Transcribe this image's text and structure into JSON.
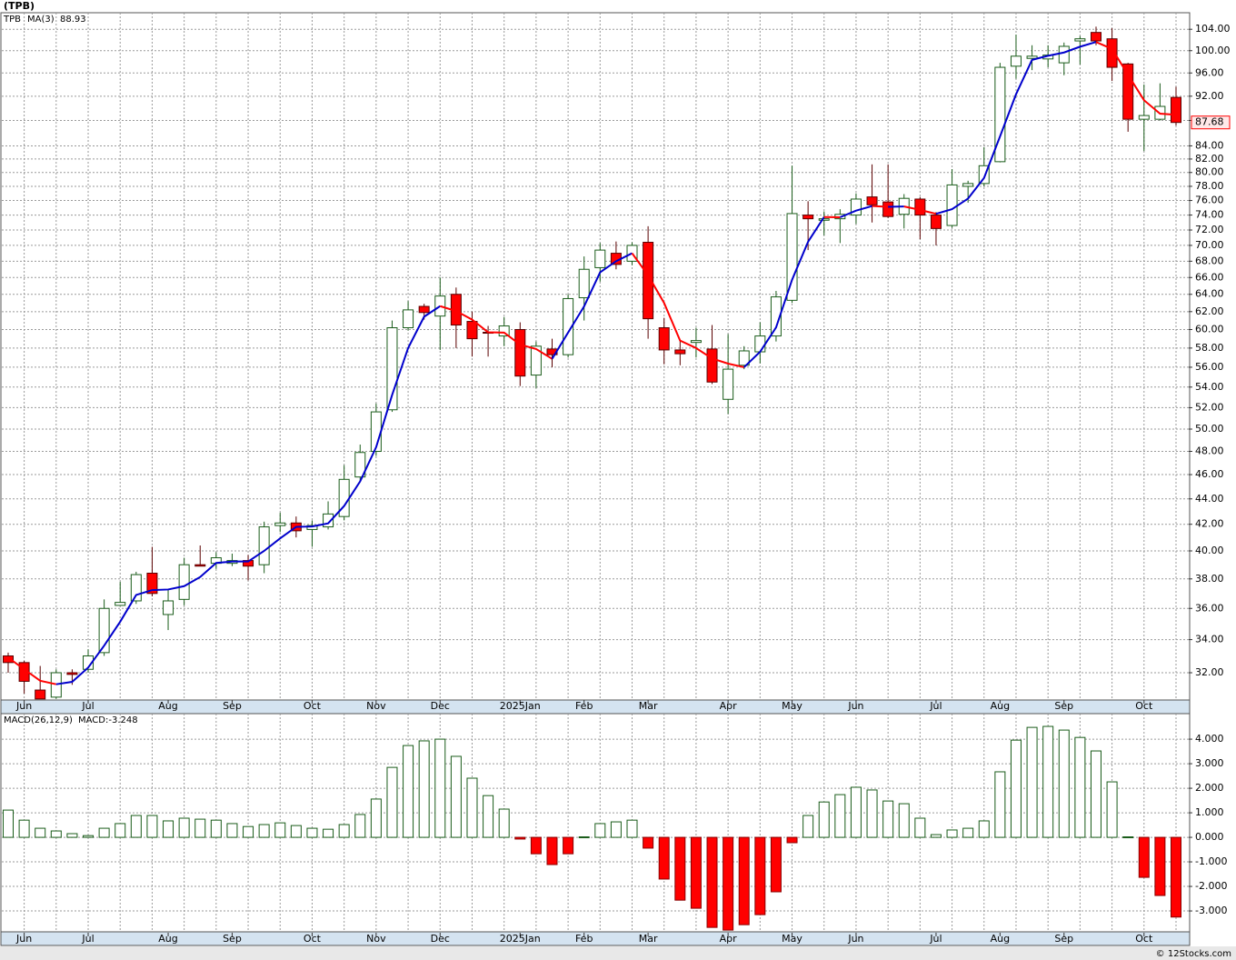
{
  "chart_data": [
    {
      "type": "candlestick",
      "title": "(TPB)",
      "symbol": "TPB",
      "symbol_color": "#1a6b1a",
      "ma_value": 88.93,
      "last_price": 87.68,
      "log_scale": true,
      "grid": true,
      "up_color": "#ffffff",
      "up_edge": "#1a5c1a",
      "down_color": "#ff0000",
      "down_edge": "#5a0000",
      "categories": [
        null,
        "Jun",
        null,
        null,
        null,
        "Jul",
        null,
        null,
        null,
        null,
        "Aug",
        null,
        null,
        null,
        "Sep",
        null,
        null,
        null,
        null,
        "Oct",
        null,
        null,
        null,
        "Nov",
        null,
        null,
        null,
        "Dec",
        null,
        null,
        null,
        null,
        "2025Jan",
        null,
        null,
        null,
        "Feb",
        null,
        null,
        null,
        "Mar",
        null,
        null,
        null,
        null,
        "Apr",
        null,
        null,
        null,
        "May",
        null,
        null,
        null,
        "Jun",
        null,
        null,
        null,
        null,
        "Jul",
        null,
        null,
        null,
        "Aug",
        null,
        null,
        null,
        "Sep",
        null,
        null,
        null,
        null,
        "Oct",
        null,
        null
      ],
      "open": [
        33.0,
        32.6,
        31.0,
        30.6,
        32.0,
        32.2,
        33.2,
        36.2,
        36.5,
        38.4,
        35.6,
        36.6,
        39.0,
        39.1,
        39.1,
        39.3,
        39.0,
        41.9,
        42.1,
        41.6,
        41.8,
        42.6,
        45.8,
        48.0,
        51.8,
        60.2,
        62.6,
        61.5,
        64.0,
        60.9,
        59.7,
        59.3,
        60.0,
        55.2,
        57.9,
        57.3,
        63.6,
        67.2,
        69.0,
        68.0,
        70.4,
        60.2,
        57.8,
        58.6,
        57.9,
        52.8,
        56.2,
        57.6,
        59.3,
        63.3,
        74.0,
        73.3,
        73.5,
        74.0,
        76.5,
        75.8,
        74.1,
        76.2,
        74.0,
        72.6,
        78.0,
        78.4,
        81.6,
        97.2,
        98.6,
        98.5,
        97.8,
        101.8,
        103.4,
        102.2,
        97.6,
        88.2,
        88.2,
        91.8
      ],
      "high": [
        33.2,
        32.7,
        32.4,
        32.2,
        32.2,
        33.4,
        36.6,
        37.8,
        38.5,
        40.3,
        37.3,
        39.5,
        40.4,
        39.9,
        39.8,
        39.7,
        42.2,
        42.9,
        42.6,
        42.3,
        43.8,
        46.8,
        48.6,
        52.4,
        61.0,
        63.2,
        62.9,
        66.0,
        64.8,
        62.0,
        60.4,
        61.4,
        60.8,
        58.7,
        59.0,
        64.0,
        68.6,
        70.3,
        70.5,
        70.4,
        72.5,
        61.3,
        58.8,
        60.2,
        60.5,
        59.5,
        58.2,
        60.8,
        64.4,
        81.0,
        75.9,
        74.5,
        74.8,
        77.0,
        81.2,
        81.2,
        76.9,
        76.5,
        74.4,
        80.5,
        78.8,
        83.8,
        97.8,
        103.0,
        101.0,
        101.0,
        101.5,
        102.7,
        104.5,
        104.2,
        97.8,
        94.0,
        94.2,
        93.6
      ],
      "low": [
        32.0,
        30.8,
        30.5,
        30.5,
        31.3,
        32.0,
        33.0,
        36.2,
        36.3,
        36.8,
        34.6,
        36.2,
        38.9,
        38.7,
        38.9,
        37.9,
        38.4,
        41.4,
        41.0,
        40.3,
        41.6,
        42.3,
        45.4,
        47.6,
        51.6,
        59.9,
        61.1,
        57.8,
        58.0,
        57.1,
        57.1,
        58.2,
        54.1,
        53.9,
        56.0,
        57.0,
        61.0,
        65.5,
        67.0,
        67.5,
        59.0,
        56.3,
        56.2,
        57.0,
        54.3,
        51.4,
        55.8,
        56.4,
        58.7,
        63.0,
        69.4,
        71.3,
        70.3,
        72.8,
        73.0,
        73.6,
        72.2,
        70.8,
        70.0,
        72.3,
        75.7,
        78.0,
        81.5,
        95.0,
        96.5,
        97.0,
        95.6,
        97.5,
        101.0,
        94.6,
        86.2,
        83.2,
        88.0,
        87.2
      ],
      "close": [
        32.6,
        31.5,
        30.5,
        32.0,
        31.9,
        33.0,
        36.0,
        36.4,
        38.3,
        37.0,
        36.5,
        39.0,
        38.9,
        39.5,
        39.3,
        38.9,
        41.8,
        42.1,
        41.5,
        41.9,
        42.8,
        45.6,
        47.9,
        51.6,
        60.2,
        62.2,
        61.9,
        63.8,
        60.5,
        59.0,
        59.6,
        60.4,
        55.1,
        58.2,
        57.3,
        63.5,
        67.0,
        69.4,
        67.6,
        70.0,
        61.2,
        57.8,
        57.4,
        58.8,
        54.5,
        55.8,
        57.7,
        59.3,
        63.7,
        74.2,
        73.5,
        73.5,
        74.1,
        76.2,
        75.4,
        73.8,
        76.3,
        74.0,
        72.2,
        78.2,
        78.4,
        81.0,
        97.0,
        99.0,
        99.0,
        99.2,
        100.8,
        102.2,
        101.8,
        97.0,
        88.2,
        88.8,
        90.3,
        87.68
      ],
      "series": [
        {
          "name": "MA(3)",
          "color": "#0000cc",
          "down_color": "#ff0000",
          "values": [
            32.9,
            32.2,
            31.53,
            31.33,
            31.47,
            32.3,
            33.63,
            35.13,
            36.9,
            37.23,
            37.27,
            37.5,
            38.13,
            39.13,
            39.23,
            39.23,
            40.0,
            40.93,
            41.8,
            41.83,
            42.07,
            43.43,
            45.43,
            48.37,
            53.23,
            58.0,
            61.43,
            62.63,
            62.07,
            61.1,
            59.7,
            59.67,
            58.37,
            57.9,
            56.87,
            59.67,
            62.6,
            66.63,
            68.0,
            69.0,
            66.27,
            63.0,
            58.8,
            58.0,
            56.9,
            56.37,
            56.0,
            57.6,
            60.23,
            65.73,
            70.47,
            73.73,
            73.7,
            74.6,
            75.23,
            75.13,
            75.17,
            74.7,
            74.17,
            74.8,
            76.27,
            79.2,
            85.47,
            92.33,
            98.33,
            99.07,
            99.67,
            100.73,
            101.6,
            100.33,
            95.67,
            91.33,
            89.1,
            88.93
          ]
        }
      ],
      "ylim": [
        30.44,
        107.2
      ],
      "yticks": [
        {
          "value": 32,
          "label": "32.00"
        },
        {
          "value": 34,
          "label": "34.00"
        },
        {
          "value": 36,
          "label": "36.00"
        },
        {
          "value": 38,
          "label": "38.00"
        },
        {
          "value": 40,
          "label": "40.00"
        },
        {
          "value": 42,
          "label": "42.00"
        },
        {
          "value": 44,
          "label": "44.00"
        },
        {
          "value": 46,
          "label": "46.00"
        },
        {
          "value": 48,
          "label": "48.00"
        },
        {
          "value": 50,
          "label": "50.00"
        },
        {
          "value": 52,
          "label": "52.00"
        },
        {
          "value": 54,
          "label": "54.00"
        },
        {
          "value": 56,
          "label": "56.00"
        },
        {
          "value": 58,
          "label": "58.00"
        },
        {
          "value": 60,
          "label": "60.00"
        },
        {
          "value": 62,
          "label": "62.00"
        },
        {
          "value": 64,
          "label": "64.00"
        },
        {
          "value": 66,
          "label": "66.00"
        },
        {
          "value": 68,
          "label": "68.00"
        },
        {
          "value": 70,
          "label": "70.00"
        },
        {
          "value": 72,
          "label": "72.00"
        },
        {
          "value": 74,
          "label": "74.00"
        },
        {
          "value": 76,
          "label": "76.00"
        },
        {
          "value": 78,
          "label": "78.00"
        },
        {
          "value": 80,
          "label": "80.00"
        },
        {
          "value": 82,
          "label": "82.00"
        },
        {
          "value": 84,
          "label": "84.00"
        },
        {
          "value": 88,
          "label": "88.00"
        },
        {
          "value": 92,
          "label": "92.00"
        },
        {
          "value": 96,
          "label": "96.00"
        },
        {
          "value": 100,
          "label": "100.00"
        },
        {
          "value": 104,
          "label": "104.00"
        }
      ]
    },
    {
      "type": "bar",
      "title": "MACD(26,12,9)",
      "legend": "MACD:-3.248",
      "legend_color": "#0000cc",
      "grid": true,
      "pos_color": "#ffffff",
      "pos_edge": "#1a5c1a",
      "neg_color": "#ff0000",
      "neg_edge": "#8a0000",
      "categories": [
        null,
        "Jun",
        null,
        null,
        null,
        "Jul",
        null,
        null,
        null,
        null,
        "Aug",
        null,
        null,
        null,
        "Sep",
        null,
        null,
        null,
        null,
        "Oct",
        null,
        null,
        null,
        "Nov",
        null,
        null,
        null,
        "Dec",
        null,
        null,
        null,
        null,
        "2025Jan",
        null,
        null,
        null,
        "Feb",
        null,
        null,
        null,
        "Mar",
        null,
        null,
        null,
        null,
        "Apr",
        null,
        null,
        null,
        "May",
        null,
        null,
        null,
        "Jun",
        null,
        null,
        null,
        null,
        "Jul",
        null,
        null,
        null,
        "Aug",
        null,
        null,
        null,
        "Sep",
        null,
        null,
        null,
        null,
        "Oct",
        null,
        null
      ],
      "values": [
        1.11,
        0.7,
        0.37,
        0.26,
        0.15,
        0.07,
        0.37,
        0.56,
        0.89,
        0.89,
        0.67,
        0.78,
        0.74,
        0.7,
        0.56,
        0.44,
        0.52,
        0.59,
        0.48,
        0.37,
        0.33,
        0.52,
        0.93,
        1.56,
        2.85,
        3.74,
        3.93,
        4.0,
        3.3,
        2.41,
        1.7,
        1.15,
        -0.07,
        -0.67,
        -1.11,
        -0.67,
        0.02,
        0.56,
        0.63,
        0.7,
        -0.44,
        -1.7,
        -2.56,
        -2.89,
        -3.67,
        -3.78,
        -3.56,
        -3.15,
        -2.22,
        -0.22,
        0.89,
        1.44,
        1.74,
        2.04,
        1.93,
        1.48,
        1.37,
        0.78,
        0.11,
        0.3,
        0.37,
        0.67,
        2.67,
        3.96,
        4.48,
        4.52,
        4.37,
        4.07,
        3.52,
        2.26,
        0.02,
        -1.63,
        -2.37,
        -3.248
      ],
      "ylim": [
        -3.85,
        5.04
      ],
      "yticks": [
        {
          "value": -3,
          "label": "-3.000"
        },
        {
          "value": -2,
          "label": "-2.000"
        },
        {
          "value": -1,
          "label": "-1.000"
        },
        {
          "value": 0,
          "label": "0.000"
        },
        {
          "value": 1,
          "label": "1.000"
        },
        {
          "value": 2,
          "label": "2.000"
        },
        {
          "value": 3,
          "label": "3.000"
        },
        {
          "value": 4,
          "label": "4.000"
        }
      ]
    }
  ],
  "footer": "© 12Stocks.com"
}
